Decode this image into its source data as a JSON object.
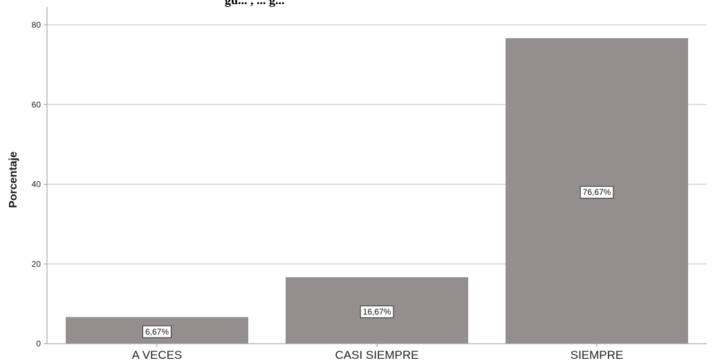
{
  "header_fragment": "gu... , ... g...",
  "chart_data": {
    "type": "bar",
    "title": "",
    "xlabel": "",
    "ylabel": "Porcentaje",
    "categories": [
      "A VECES",
      "CASI SIEMPRE",
      "SIEMPRE"
    ],
    "values": [
      6.67,
      16.67,
      76.67
    ],
    "data_labels": [
      "6,67%",
      "16,67%",
      "76,67%"
    ],
    "ylim": [
      0,
      80
    ],
    "yticks": [
      0,
      20,
      40,
      60,
      80
    ],
    "grid": true,
    "legend": "none",
    "colors": {
      "bar": "#948e8e",
      "grid": "#d4d4d4",
      "axis": "#9a9a9a"
    }
  }
}
